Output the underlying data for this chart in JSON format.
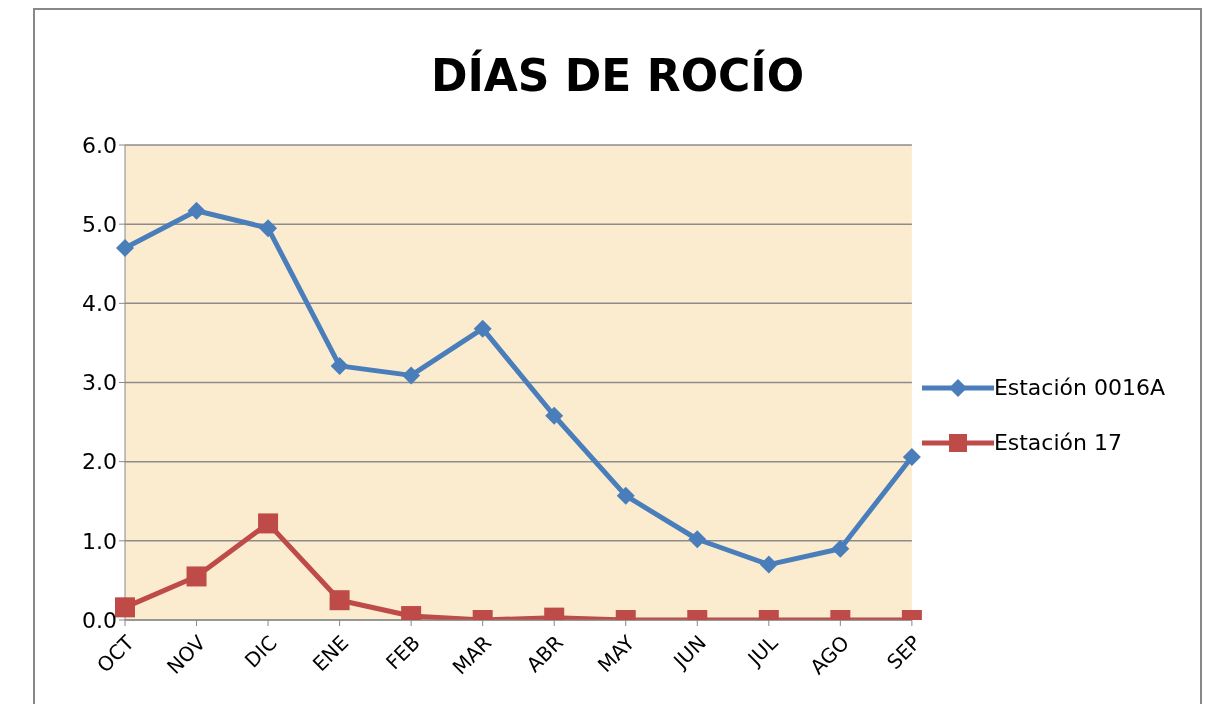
{
  "chart_data": {
    "type": "line",
    "title": "DÍAS DE ROCÍO",
    "categories": [
      "OCT",
      "NOV",
      "DIC",
      "ENE",
      "FEB",
      "MAR",
      "ABR",
      "MAY",
      "JUN",
      "JUL",
      "AGO",
      "SEP"
    ],
    "series": [
      {
        "name": "Estación 0016A",
        "color": "#4a7ebb",
        "marker": "diamond",
        "values": [
          4.7,
          5.17,
          4.95,
          3.21,
          3.09,
          3.68,
          2.58,
          1.57,
          1.02,
          0.7,
          0.9,
          2.06
        ]
      },
      {
        "name": "Estación 17",
        "color": "#be4b48",
        "marker": "square",
        "values": [
          0.16,
          0.55,
          1.22,
          0.25,
          0.05,
          0,
          0.03,
          0,
          0,
          0,
          0,
          0
        ]
      }
    ],
    "ylim": [
      0,
      6
    ],
    "yticks": [
      {
        "value": 0,
        "label": "0.0"
      },
      {
        "value": 1,
        "label": "1.0"
      },
      {
        "value": 2,
        "label": "2.0"
      },
      {
        "value": 3,
        "label": "3.0"
      },
      {
        "value": 4,
        "label": "4.0"
      },
      {
        "value": 5,
        "label": "5.0"
      },
      {
        "value": 6,
        "label": "6.0"
      }
    ],
    "grid": "y",
    "legend": "right",
    "line_style": "solid"
  }
}
